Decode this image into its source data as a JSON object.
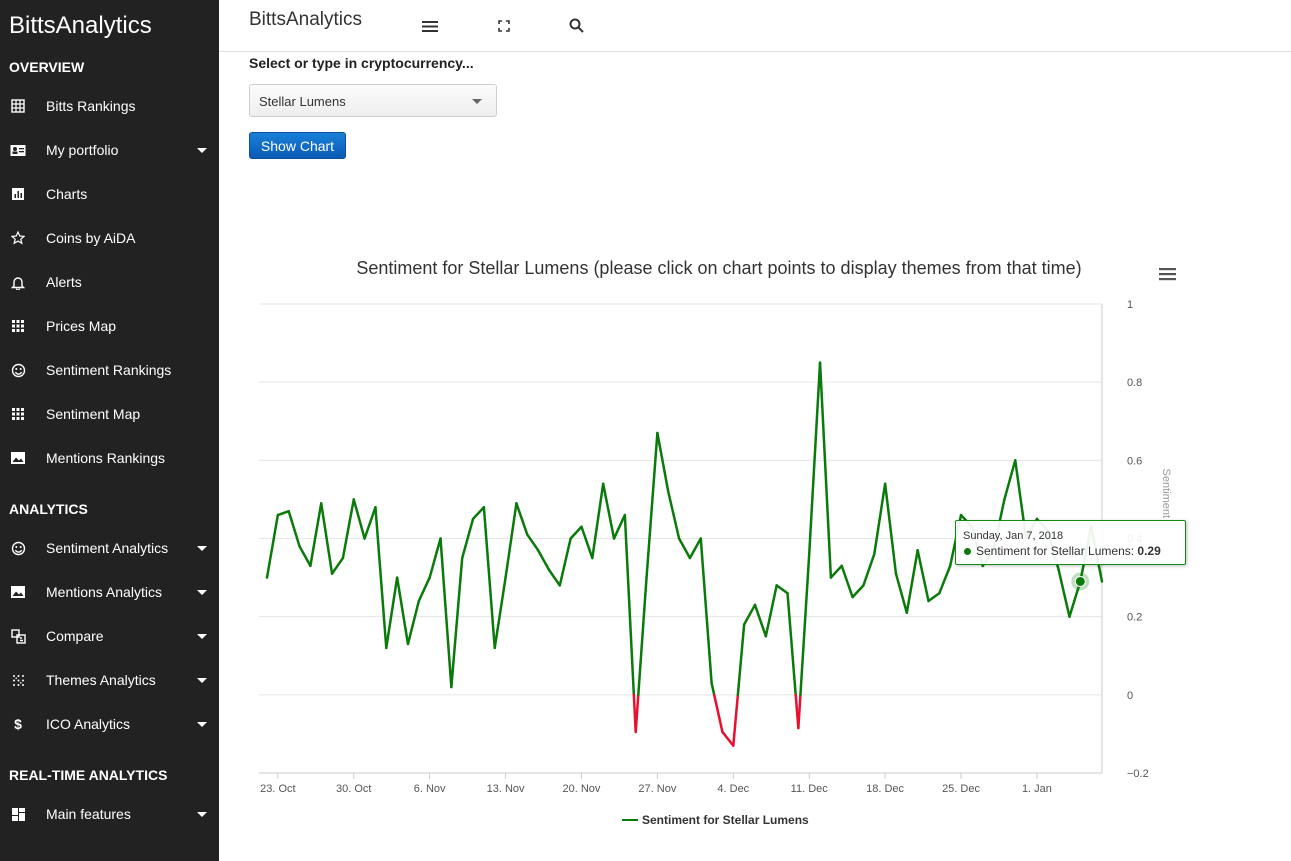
{
  "sidebar": {
    "brand": "BittsAnalytics",
    "sections": [
      "OVERVIEW",
      "ANALYTICS",
      "REAL-TIME ANALYTICS"
    ],
    "items": [
      {
        "label": "Bitts Rankings",
        "icon": "grid-icon",
        "caret": false
      },
      {
        "label": "My portfolio",
        "icon": "contact-card-icon",
        "caret": true
      },
      {
        "label": "Charts",
        "icon": "bar-chart-icon",
        "caret": false
      },
      {
        "label": "Coins by AiDA",
        "icon": "star-icon",
        "caret": false
      },
      {
        "label": "Alerts",
        "icon": "bell-icon",
        "caret": false
      },
      {
        "label": "Prices Map",
        "icon": "dots-grid-icon",
        "caret": false
      },
      {
        "label": "Sentiment Rankings",
        "icon": "smiley-icon",
        "caret": false
      },
      {
        "label": "Sentiment Map",
        "icon": "dots-grid-icon",
        "caret": false
      },
      {
        "label": "Mentions Rankings",
        "icon": "image-chart-icon",
        "caret": false
      },
      {
        "label": "Sentiment Analytics",
        "icon": "smiley-icon",
        "caret": true
      },
      {
        "label": "Mentions Analytics",
        "icon": "image-chart-icon",
        "caret": true
      },
      {
        "label": "Compare",
        "icon": "compare-icon",
        "caret": true
      },
      {
        "label": "Themes Analytics",
        "icon": "dots-scatter-icon",
        "caret": true
      },
      {
        "label": "ICO Analytics",
        "icon": "dollar-icon",
        "caret": true
      },
      {
        "label": "Main features",
        "icon": "dashboard-icon",
        "caret": true
      }
    ]
  },
  "topbar": {
    "title": "BittsAnalytics"
  },
  "form": {
    "label": "Select or type in cryptocurrency...",
    "selected": "Stellar Lumens",
    "button": "Show Chart"
  },
  "tooltip": {
    "date": "Sunday, Jan 7, 2018",
    "series": "Sentiment for Stellar Lumens: ",
    "value": "0.29"
  },
  "colors": {
    "line_positive": "#0a7a0a",
    "line_negative": "#e8102e",
    "sidebar_bg": "#222222",
    "button": "#0a5bb5"
  },
  "chart_data": {
    "type": "line",
    "title": "Sentiment for Stellar Lumens (please click on chart points to display themes from that time)",
    "ylabel": "Sentiment",
    "ylim": [
      -0.2,
      1
    ],
    "yticks": [
      "1",
      "0.8",
      "0.6",
      "0.4",
      "0.2",
      "0",
      "−0.2"
    ],
    "xticks": [
      "23. Oct",
      "30. Oct",
      "6. Nov",
      "13. Nov",
      "20. Nov",
      "27. Nov",
      "4. Dec",
      "11. Dec",
      "18. Dec",
      "25. Dec",
      "1. Jan"
    ],
    "x_start": "2017-10-22",
    "legend": "Sentiment for Stellar Lumens",
    "legend_position": "bottom",
    "grid": true,
    "series": [
      {
        "name": "Sentiment for Stellar Lumens",
        "values": [
          0.3,
          0.46,
          0.47,
          0.38,
          0.33,
          0.49,
          0.31,
          0.35,
          0.5,
          0.4,
          0.48,
          0.12,
          0.3,
          0.13,
          0.24,
          0.3,
          0.4,
          0.02,
          0.35,
          0.45,
          0.48,
          0.12,
          0.3,
          0.49,
          0.41,
          0.37,
          0.32,
          0.28,
          0.4,
          0.43,
          0.35,
          0.54,
          0.4,
          0.46,
          -0.095,
          0.3,
          0.67,
          0.52,
          0.4,
          0.35,
          0.4,
          0.03,
          -0.095,
          -0.13,
          0.18,
          0.23,
          0.15,
          0.28,
          0.26,
          -0.085,
          0.36,
          0.85,
          0.3,
          0.33,
          0.25,
          0.28,
          0.36,
          0.54,
          0.31,
          0.21,
          0.37,
          0.24,
          0.26,
          0.33,
          0.46,
          0.43,
          0.33,
          0.37,
          0.5,
          0.6,
          0.4,
          0.45,
          0.42,
          0.32,
          0.2,
          0.29,
          0.43,
          0.29
        ]
      }
    ]
  }
}
